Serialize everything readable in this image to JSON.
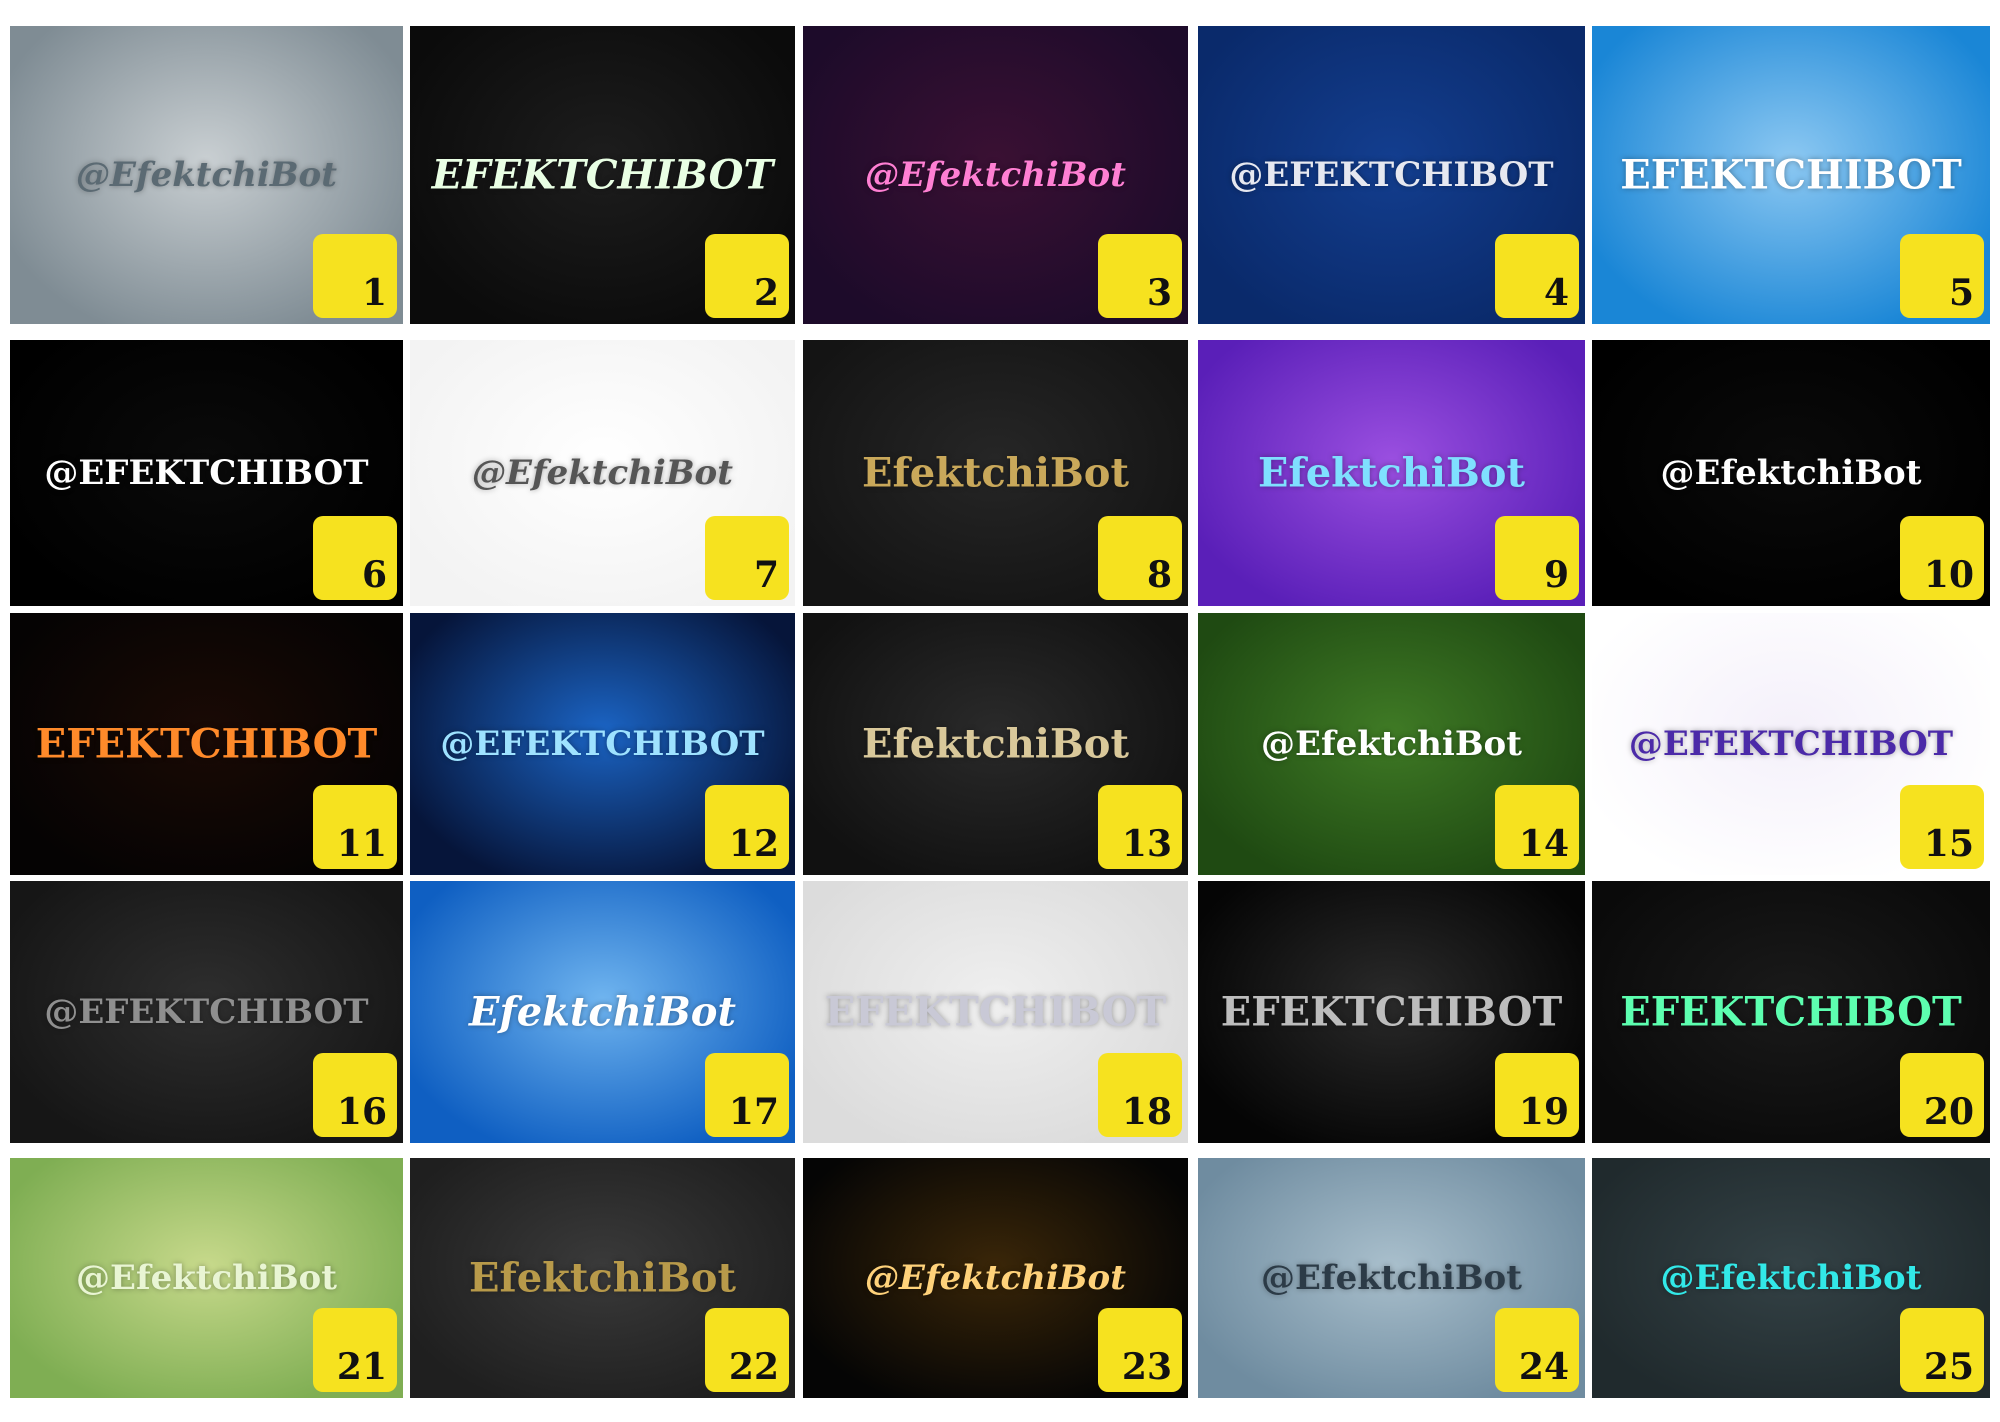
{
  "tiles": [
    {
      "num": "1",
      "text": "@EfektchiBot",
      "colors": [
        "#7f8c94",
        "#c9cfd2"
      ],
      "ink": "#5b6a73",
      "style": "italic"
    },
    {
      "num": "2",
      "text": "EFEKTCHIBOT",
      "colors": [
        "#0b0b0b",
        "#1d1d1d"
      ],
      "ink": "#e9ffe4",
      "style": "italic"
    },
    {
      "num": "3",
      "text": "@EfektchiBot",
      "colors": [
        "#1d0b2a",
        "#3a1033"
      ],
      "ink": "#ff7fd3",
      "style": "italic"
    },
    {
      "num": "4",
      "text": "@EFEKTCHIBOT",
      "colors": [
        "#0a2a6b",
        "#133e8f"
      ],
      "ink": "#e6e8f0",
      "style": "normal"
    },
    {
      "num": "5",
      "text": "EFEKTCHIBOT",
      "colors": [
        "#1a86d6",
        "#8cc8f2"
      ],
      "ink": "#ffffff",
      "style": "normal"
    },
    {
      "num": "6",
      "text": "@EFEKTCHIBOT",
      "colors": [
        "#000000",
        "#0a0a0a"
      ],
      "ink": "#ffffff",
      "style": "normal"
    },
    {
      "num": "7",
      "text": "@EfektchiBot",
      "colors": [
        "#f3f3f3",
        "#ffffff"
      ],
      "ink": "#555555",
      "style": "italic"
    },
    {
      "num": "8",
      "text": "EfektchiBot",
      "colors": [
        "#141414",
        "#262626"
      ],
      "ink": "#c9a85a",
      "style": "normal"
    },
    {
      "num": "9",
      "text": "EfektchiBot",
      "colors": [
        "#5a1fb8",
        "#9a4fe0"
      ],
      "ink": "#7fe0ff",
      "style": "normal"
    },
    {
      "num": "10",
      "text": "@EfektchiBot",
      "colors": [
        "#000000",
        "#0a0a0a"
      ],
      "ink": "#ffffff",
      "style": "normal"
    },
    {
      "num": "11",
      "text": "EFEKTCHIBOT",
      "colors": [
        "#050303",
        "#1a0a05"
      ],
      "ink": "#ff8a2a",
      "style": "normal"
    },
    {
      "num": "12",
      "text": "@EFEKTCHIBOT",
      "colors": [
        "#06153a",
        "#1b64c4"
      ],
      "ink": "#9ee2ff",
      "style": "normal"
    },
    {
      "num": "13",
      "text": "EfektchiBot",
      "colors": [
        "#111111",
        "#2a2a2a"
      ],
      "ink": "#d9c89a",
      "style": "normal"
    },
    {
      "num": "14",
      "text": "@EfektchiBot",
      "colors": [
        "#1f4a12",
        "#3f7a25"
      ],
      "ink": "#ffffff",
      "style": "normal"
    },
    {
      "num": "15",
      "text": "@EFEKTCHIBOT",
      "colors": [
        "#ffffff",
        "#f4f0fa"
      ],
      "ink": "#4b2aa8",
      "style": "normal"
    },
    {
      "num": "16",
      "text": "@EFEKTCHIBOT",
      "colors": [
        "#161616",
        "#2e2e2e"
      ],
      "ink": "#8f8f8f",
      "style": "normal"
    },
    {
      "num": "17",
      "text": "EfektchiBot",
      "colors": [
        "#0f5fc2",
        "#6fb4ef"
      ],
      "ink": "#ffffff",
      "style": "italic"
    },
    {
      "num": "18",
      "text": "EFEKTCHIBOT",
      "colors": [
        "#dcdcdc",
        "#efefef"
      ],
      "ink": "#c9c9d6",
      "style": "normal"
    },
    {
      "num": "19",
      "text": "EFEKTCHIBOT",
      "colors": [
        "#050505",
        "#2a2a2a"
      ],
      "ink": "#bdbdbd",
      "style": "normal"
    },
    {
      "num": "20",
      "text": "EFEKTCHIBOT",
      "colors": [
        "#0a0a0a",
        "#1a1a1a"
      ],
      "ink": "#5dffb0",
      "style": "normal"
    },
    {
      "num": "21",
      "text": "@EfektchiBot",
      "colors": [
        "#7fae53",
        "#c7d98b"
      ],
      "ink": "#e9f5d4",
      "style": "normal"
    },
    {
      "num": "22",
      "text": "EfektchiBot",
      "colors": [
        "#1f1f1f",
        "#3a3a3a"
      ],
      "ink": "#b89a4a",
      "style": "normal"
    },
    {
      "num": "23",
      "text": "@EfektchiBot",
      "colors": [
        "#050505",
        "#3a2608"
      ],
      "ink": "#ffd27a",
      "style": "italic"
    },
    {
      "num": "24",
      "text": "@EfektchiBot",
      "colors": [
        "#6f8ca0",
        "#a9bfcc"
      ],
      "ink": "#2c3b47",
      "style": "normal"
    },
    {
      "num": "25",
      "text": "@EfektchiBot",
      "colors": [
        "#202a2d",
        "#344246"
      ],
      "ink": "#32e8e8",
      "style": "normal"
    }
  ]
}
